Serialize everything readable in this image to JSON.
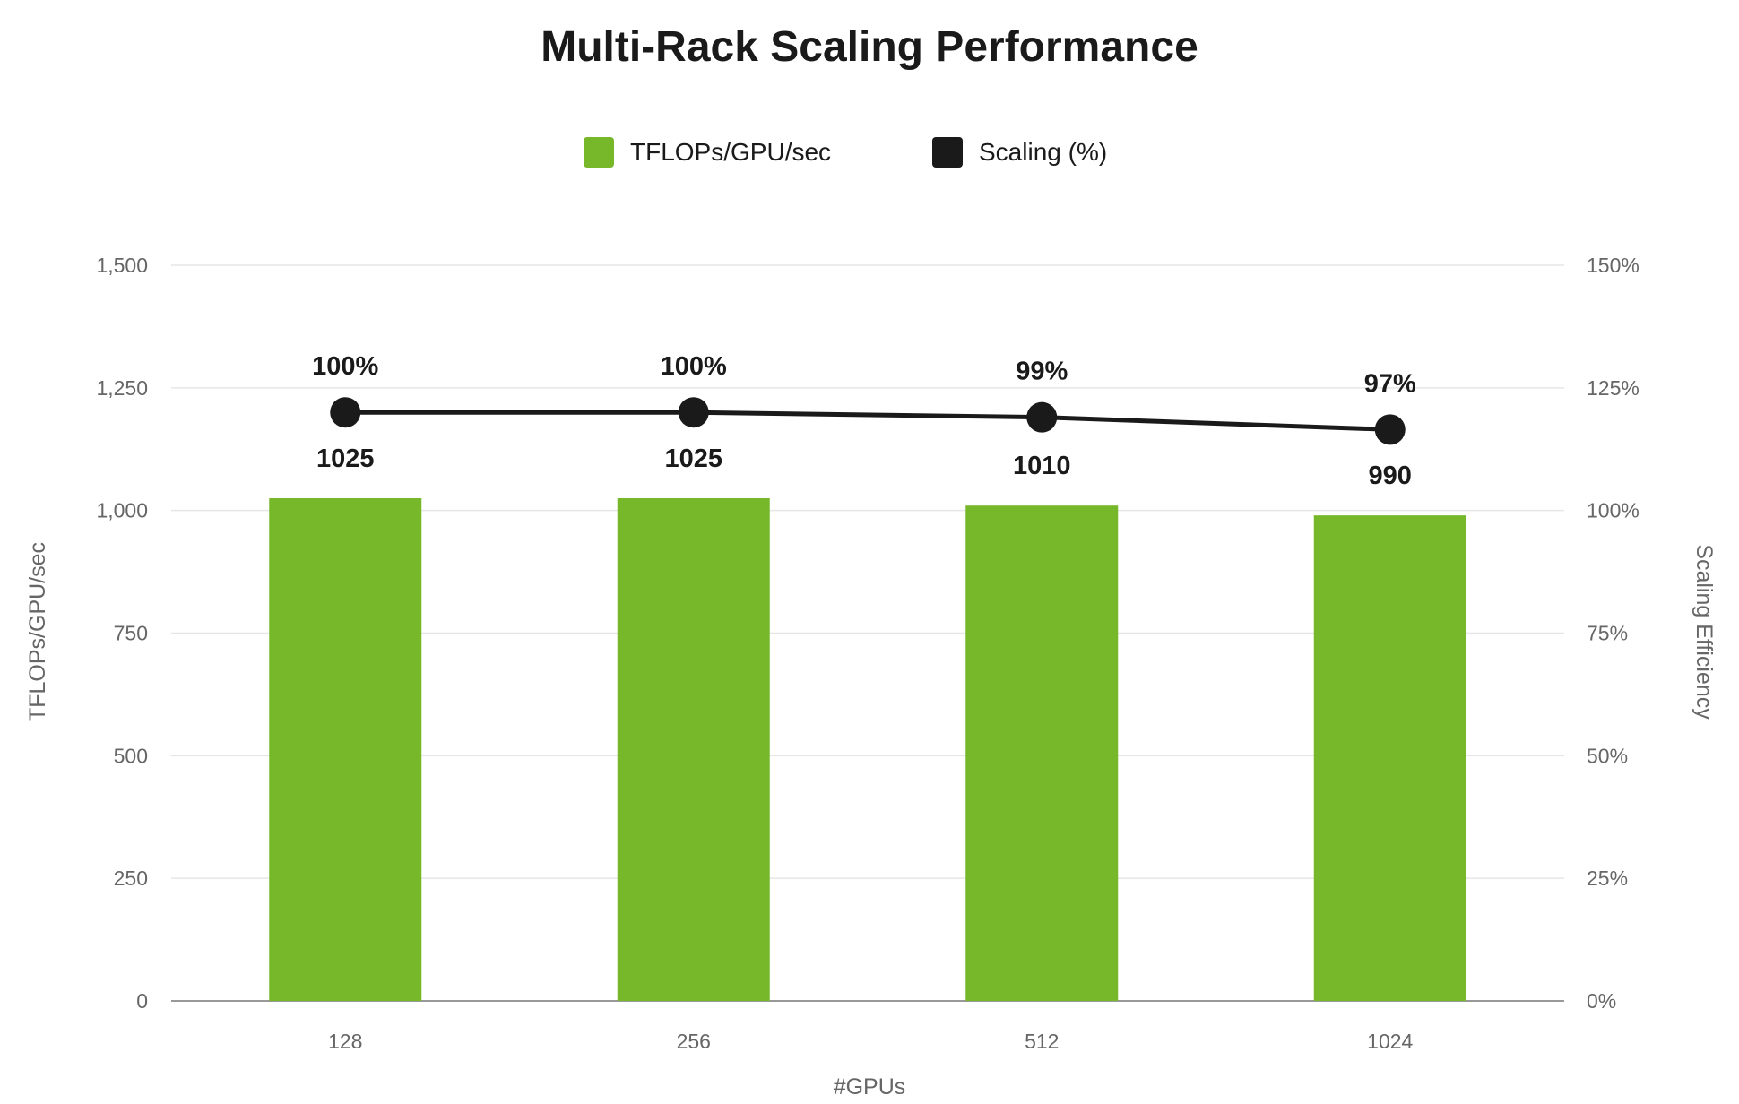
{
  "chart_data": {
    "type": "bar",
    "title": "Multi-Rack Scaling Performance",
    "categories": [
      "128",
      "256",
      "512",
      "1024"
    ],
    "xlabel": "#GPUs",
    "ylabel": "TFLOPs/GPU/sec",
    "y2label": "Scaling Efficiency",
    "ylim": [
      0,
      1500
    ],
    "y2lim": [
      0,
      150
    ],
    "yticks": [
      "0",
      "250",
      "500",
      "750",
      "1,000",
      "1,250",
      "1,500"
    ],
    "y2ticks": [
      "0%",
      "25%",
      "50%",
      "75%",
      "100%",
      "125%",
      "150%"
    ],
    "grid": true,
    "legend_position": "top-center",
    "series": [
      {
        "name": "TFLOPs/GPU/sec",
        "type": "bar",
        "axis": "left",
        "color": "#76b82a",
        "values": [
          1025,
          1025,
          1010,
          990
        ],
        "labels": [
          "1025",
          "1025",
          "1010",
          "990"
        ]
      },
      {
        "name": "Scaling (%)",
        "type": "line",
        "axis": "right",
        "color": "#1a1a1a",
        "plot_values": [
          120,
          120,
          119,
          116.5
        ],
        "labels": [
          "100%",
          "100%",
          "99%",
          "97%"
        ]
      }
    ]
  }
}
